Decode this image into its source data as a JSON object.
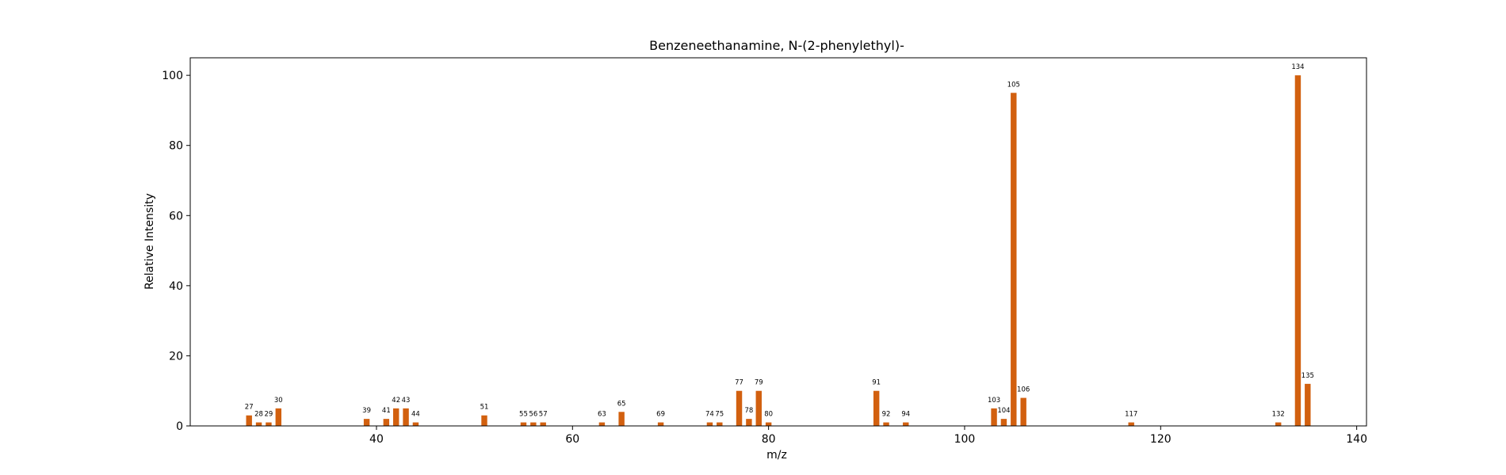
{
  "chart_data": {
    "type": "bar",
    "title": "Benzeneethanamine, N-(2-phenylethyl)-",
    "xlabel": "m/z",
    "ylabel": "Relative Intensity",
    "xlim": [
      21,
      141
    ],
    "ylim": [
      0,
      105
    ],
    "xticks": [
      40,
      60,
      80,
      100,
      120,
      140
    ],
    "yticks": [
      0,
      20,
      40,
      60,
      80,
      100
    ],
    "grid": false,
    "bar_color": "#d2600f",
    "x": [
      27,
      28,
      29,
      30,
      39,
      41,
      42,
      43,
      44,
      51,
      55,
      56,
      57,
      63,
      65,
      69,
      74,
      75,
      77,
      78,
      79,
      80,
      91,
      92,
      94,
      103,
      104,
      105,
      106,
      117,
      132,
      134,
      135
    ],
    "values": [
      3,
      1,
      1,
      5,
      2,
      2,
      5,
      5,
      1,
      3,
      1,
      1,
      1,
      1,
      4,
      1,
      1,
      1,
      10,
      2,
      10,
      1,
      10,
      1,
      1,
      5,
      2,
      95,
      8,
      1,
      1,
      100,
      12
    ],
    "labels": [
      "27",
      "28",
      "29",
      "30",
      "39",
      "41",
      "42",
      "43",
      "44",
      "51",
      "55",
      "56",
      "57",
      "63",
      "65",
      "69",
      "74",
      "75",
      "77",
      "78",
      "79",
      "80",
      "91",
      "92",
      "94",
      "103",
      "104",
      "105",
      "106",
      "117",
      "132",
      "134",
      "135"
    ]
  }
}
